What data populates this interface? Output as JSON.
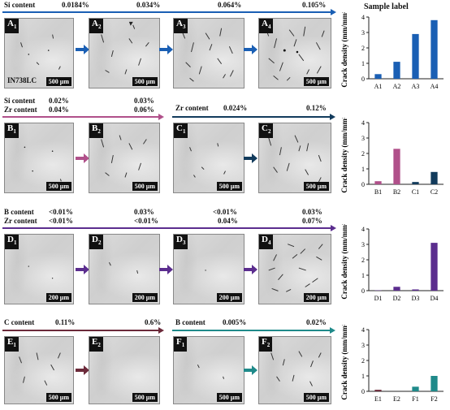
{
  "rows": [
    {
      "id": "row-a",
      "content_labels": [
        {
          "key": "si",
          "text": "Si content",
          "values": [
            "0.0184%",
            "0.034%",
            "0.064%",
            "0.105%"
          ]
        }
      ],
      "panels": [
        {
          "label": "A",
          "sub": "1",
          "scale": "500 µm",
          "material": "IN738LC",
          "cracks": 0.3
        },
        {
          "label": "A",
          "sub": "2",
          "scale": "500 µm",
          "cracks": 1.1
        },
        {
          "label": "A",
          "sub": "3",
          "scale": "",
          "cracks": 2.9
        },
        {
          "label": "A",
          "sub": "4",
          "scale": "500 µm",
          "cracks": 3.8
        }
      ],
      "arrow_color": "#1a5fb4"
    },
    {
      "id": "row-b",
      "content_labels": [
        {
          "key": "si",
          "text": "Si content",
          "values": [
            "0.02%",
            "0.03%"
          ]
        },
        {
          "key": "zr",
          "text": "Zr content",
          "values": [
            "0.04%",
            "0.06%"
          ]
        },
        {
          "key": "zr2",
          "text": "Zr content",
          "values": [
            "0.024%",
            "0.12%"
          ]
        }
      ],
      "panels": [
        {
          "label": "B",
          "sub": "1",
          "scale": "500 µm",
          "cracks": 0.2
        },
        {
          "label": "B",
          "sub": "2",
          "scale": "500 µm",
          "cracks": 2.3
        },
        {
          "label": "C",
          "sub": "1",
          "scale": "500 µm",
          "cracks": 0.15
        },
        {
          "label": "C",
          "sub": "2",
          "scale": "500 µm",
          "cracks": 0.8
        }
      ]
    },
    {
      "id": "row-d",
      "content_labels": [
        {
          "key": "b",
          "text": "B content",
          "values": [
            "<0.01%",
            "0.03%",
            "<0.01%",
            "0.03%"
          ]
        },
        {
          "key": "zr",
          "text": "Zr content",
          "values": [
            "<0.01%",
            "<0.01%",
            "0.04%",
            "0.07%"
          ]
        }
      ],
      "panels": [
        {
          "label": "D",
          "sub": "1",
          "scale": "200 µm",
          "cracks": 0.02
        },
        {
          "label": "D",
          "sub": "2",
          "scale": "200 µm",
          "cracks": 0.25
        },
        {
          "label": "D",
          "sub": "3",
          "scale": "200 µm",
          "cracks": 0.08
        },
        {
          "label": "D",
          "sub": "4",
          "scale": "200 µm",
          "cracks": 3.1
        }
      ]
    },
    {
      "id": "row-e",
      "content_labels": [
        {
          "key": "c",
          "text": "C content",
          "values": [
            "0.11%",
            "0.6%"
          ]
        },
        {
          "key": "b",
          "text": "B content",
          "values": [
            "0.005%",
            "0.02%"
          ]
        }
      ],
      "panels": [
        {
          "label": "E",
          "sub": "1",
          "scale": "500 µm",
          "cracks": 0.1
        },
        {
          "label": "E",
          "sub": "2",
          "scale": "500 µm",
          "cracks": 0.0
        },
        {
          "label": "F",
          "sub": "1",
          "scale": "500 µm",
          "cracks": 0.3
        },
        {
          "label": "F",
          "sub": "2",
          "scale": "500 µm",
          "cracks": 1.0
        }
      ]
    }
  ],
  "sample_label_title": "Sample label",
  "chart_data": [
    {
      "type": "bar",
      "categories": [
        "A1",
        "A2",
        "A3",
        "A4"
      ],
      "values": [
        0.3,
        1.1,
        2.9,
        3.8
      ],
      "colors": [
        "#1a5fb4",
        "#1a5fb4",
        "#1a5fb4",
        "#1a5fb4"
      ],
      "ylabel": "Crack density (mm/mm²)",
      "ylim": [
        0,
        4
      ],
      "yticks": [
        0,
        1,
        2,
        3,
        4
      ]
    },
    {
      "type": "bar",
      "categories": [
        "B1",
        "B2",
        "C1",
        "C2"
      ],
      "values": [
        0.2,
        2.3,
        0.15,
        0.8
      ],
      "colors": [
        "#b0508a",
        "#b0508a",
        "#123b5c",
        "#123b5c"
      ],
      "ylabel": "Crack density (mm/mm²)",
      "ylim": [
        0,
        4
      ],
      "yticks": [
        0,
        1,
        2,
        3,
        4
      ]
    },
    {
      "type": "bar",
      "categories": [
        "D1",
        "D2",
        "D3",
        "D4"
      ],
      "values": [
        0.02,
        0.25,
        0.08,
        3.1
      ],
      "colors": [
        "#5b2d8e",
        "#5b2d8e",
        "#5b2d8e",
        "#5b2d8e"
      ],
      "ylabel": "Crack density (mm/mm²)",
      "ylim": [
        0,
        4
      ],
      "yticks": [
        0,
        1,
        2,
        3,
        4
      ]
    },
    {
      "type": "bar",
      "categories": [
        "E1",
        "E2",
        "F1",
        "F2"
      ],
      "values": [
        0.1,
        0.0,
        0.3,
        1.0
      ],
      "colors": [
        "#6b2a3a",
        "#6b2a3a",
        "#1f8a8a",
        "#1f8a8a"
      ],
      "ylabel": "Crack density (mm/mm²)",
      "ylim": [
        0,
        4
      ],
      "yticks": [
        0,
        1,
        2,
        3,
        4
      ]
    }
  ]
}
